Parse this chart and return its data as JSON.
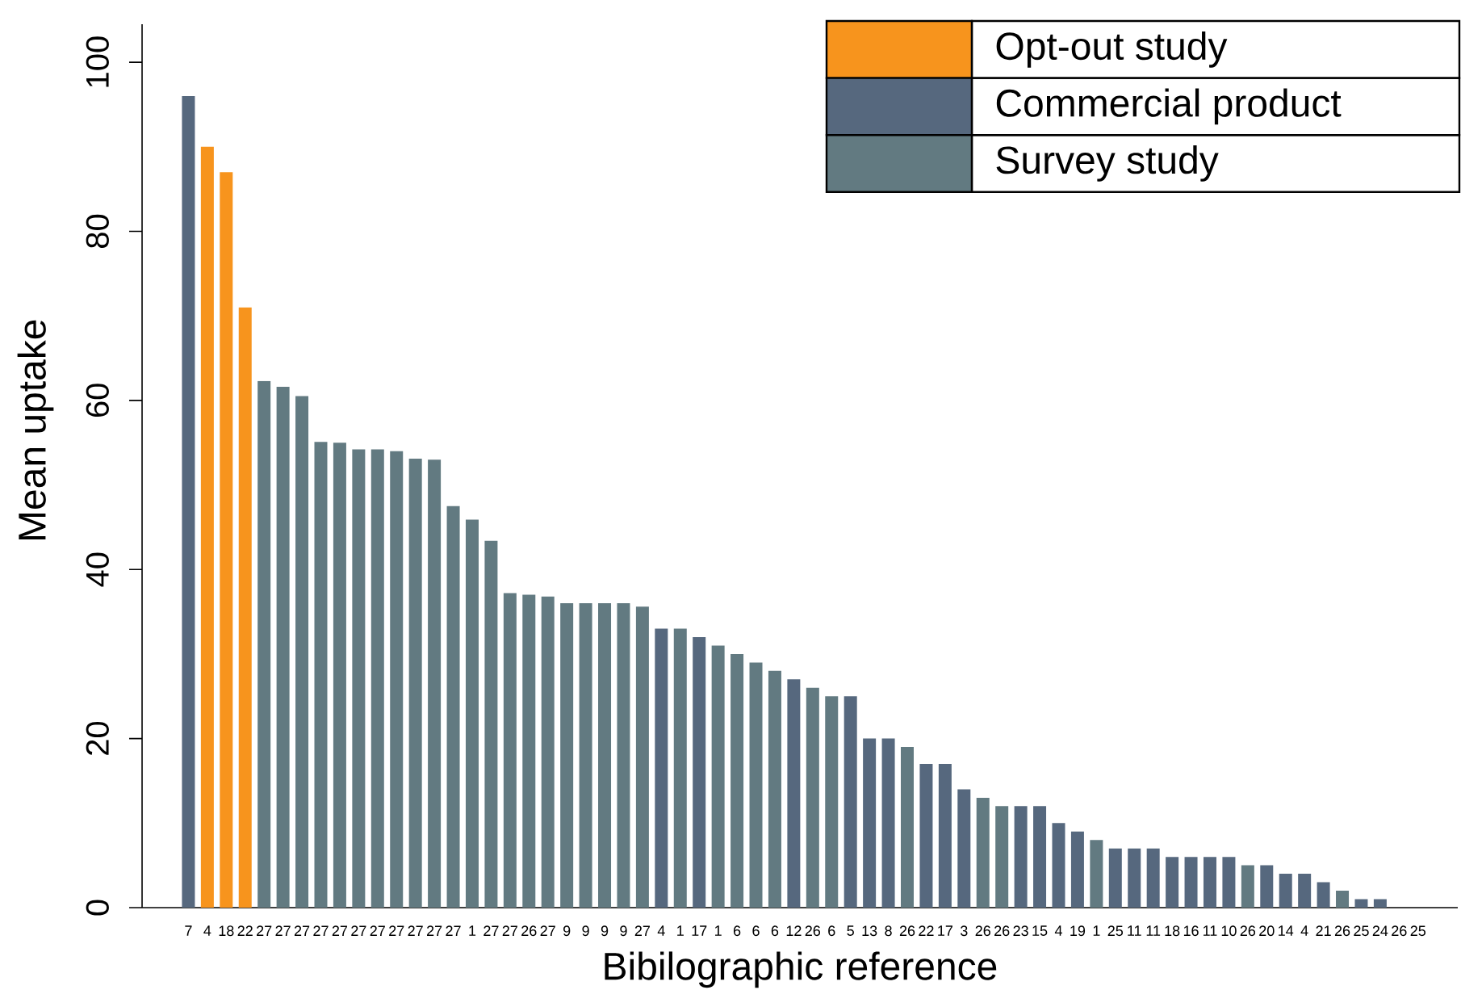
{
  "chart_data": {
    "type": "bar",
    "xlabel": "Bibilographic reference",
    "ylabel": "Mean uptake",
    "categories": [
      "7",
      "4",
      "18",
      "22",
      "27",
      "27",
      "27",
      "27",
      "27",
      "27",
      "27",
      "27",
      "27",
      "27",
      "27",
      "1",
      "27",
      "27",
      "26",
      "27",
      "9",
      "9",
      "9",
      "9",
      "27",
      "4",
      "1",
      "17",
      "1",
      "6",
      "6",
      "6",
      "12",
      "26",
      "6",
      "5",
      "13",
      "8",
      "26",
      "22",
      "17",
      "3",
      "26",
      "26",
      "23",
      "15",
      "4",
      "19",
      "1",
      "25",
      "11",
      "11",
      "18",
      "16",
      "11",
      "10",
      "26",
      "20",
      "14",
      "4",
      "21",
      "26",
      "25",
      "24",
      "26",
      "25"
    ],
    "series": [
      {
        "name": "Opt-out study",
        "color": "#f7941d",
        "values": [
          null,
          90,
          87,
          71,
          null,
          null,
          null,
          null,
          null,
          null,
          null,
          null,
          null,
          null,
          null,
          null,
          null,
          null,
          null,
          null,
          null,
          null,
          null,
          null,
          null,
          null,
          null,
          null,
          null,
          null,
          null,
          null,
          null,
          null,
          null,
          null,
          null,
          null,
          null,
          null,
          null,
          null,
          null,
          null,
          null,
          null,
          null,
          null,
          null,
          null,
          null,
          null,
          null,
          null,
          null,
          null,
          null,
          null,
          null,
          null,
          null,
          null,
          null,
          null,
          null,
          null
        ]
      },
      {
        "name": "Commercial product",
        "color": "#56687e",
        "values": [
          96,
          null,
          null,
          null,
          null,
          null,
          null,
          null,
          null,
          null,
          null,
          null,
          null,
          null,
          null,
          null,
          null,
          null,
          null,
          null,
          null,
          null,
          null,
          null,
          null,
          33,
          null,
          32,
          null,
          null,
          null,
          null,
          27,
          null,
          null,
          25,
          20,
          20,
          null,
          17,
          17,
          14,
          null,
          null,
          12,
          12,
          10,
          9,
          null,
          7,
          7,
          7,
          6,
          6,
          6,
          6,
          null,
          5,
          4,
          4,
          3,
          null,
          1,
          1,
          null,
          null
        ]
      },
      {
        "name": "Survey study",
        "color": "#627a81",
        "values": [
          null,
          null,
          null,
          null,
          62.3,
          61.6,
          60.5,
          55.1,
          55.0,
          54.2,
          54.2,
          54.0,
          53.1,
          53.0,
          47.5,
          45.9,
          43.4,
          37.2,
          37.0,
          36.8,
          36,
          36,
          36,
          36,
          35.6,
          null,
          33,
          null,
          31,
          30,
          29,
          28,
          null,
          26,
          25,
          null,
          null,
          null,
          19,
          null,
          null,
          null,
          13,
          12,
          null,
          null,
          null,
          null,
          8,
          null,
          null,
          null,
          null,
          null,
          null,
          null,
          5,
          null,
          null,
          null,
          null,
          2,
          null,
          null,
          null,
          null
        ]
      }
    ],
    "ylim": [
      0,
      104.5
    ],
    "yticks": [
      0,
      20,
      40,
      60,
      80,
      100
    ],
    "legend": "top right"
  }
}
